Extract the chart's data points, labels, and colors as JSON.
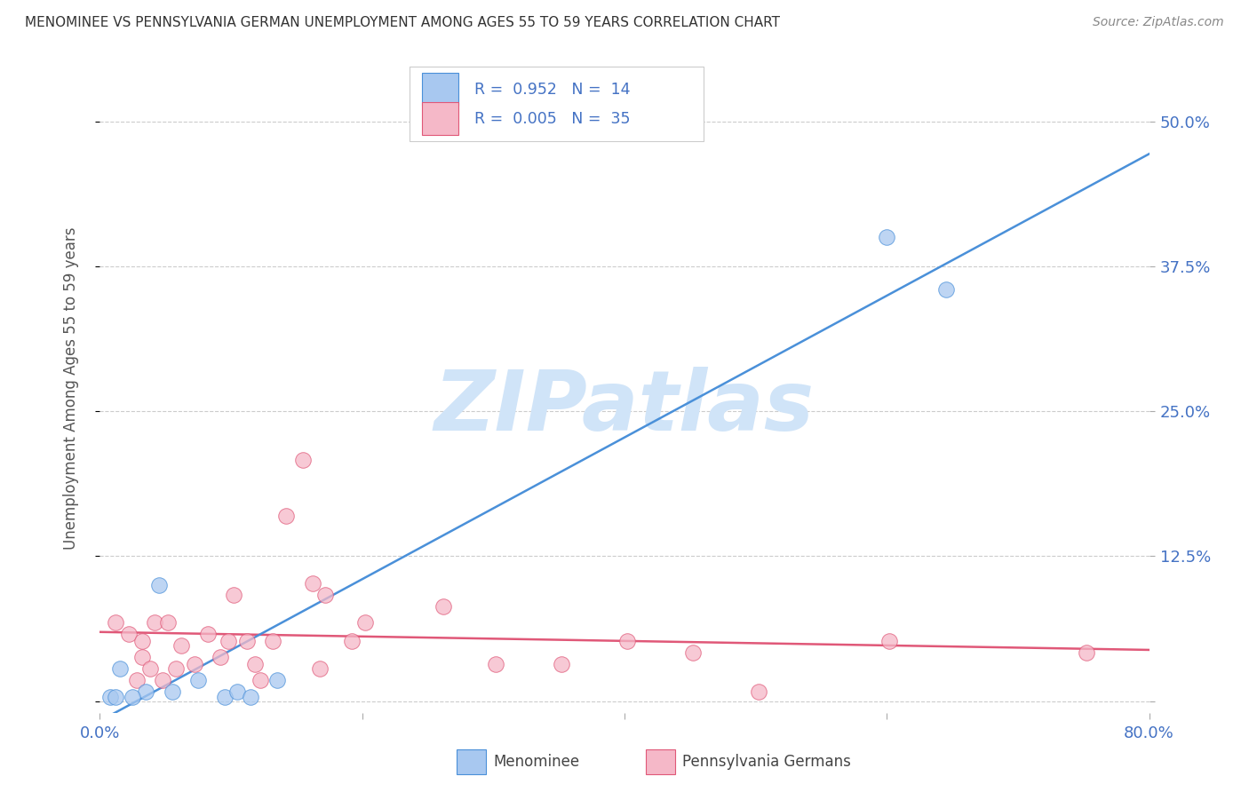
{
  "title": "MENOMINEE VS PENNSYLVANIA GERMAN UNEMPLOYMENT AMONG AGES 55 TO 59 YEARS CORRELATION CHART",
  "source": "Source: ZipAtlas.com",
  "ylabel": "Unemployment Among Ages 55 to 59 years",
  "xlim": [
    0.0,
    0.8
  ],
  "ylim": [
    -0.01,
    0.55
  ],
  "xticks": [
    0.0,
    0.2,
    0.4,
    0.6,
    0.8
  ],
  "xticklabels": [
    "0.0%",
    "",
    "",
    "",
    "80.0%"
  ],
  "ytick_positions": [
    0.0,
    0.125,
    0.25,
    0.375,
    0.5
  ],
  "ytick_labels": [
    "",
    "12.5%",
    "25.0%",
    "37.5%",
    "50.0%"
  ],
  "menominee_R": "0.952",
  "menominee_N": "14",
  "penn_german_R": "0.005",
  "penn_german_N": "35",
  "menominee_color": "#a8c8f0",
  "penn_german_color": "#f5b8c8",
  "menominee_line_color": "#4a90d9",
  "penn_german_line_color": "#e05878",
  "watermark": "ZIPatlas",
  "watermark_color": "#d0e4f8",
  "menominee_scatter_x": [
    0.015,
    0.035,
    0.008,
    0.025,
    0.045,
    0.055,
    0.075,
    0.095,
    0.105,
    0.115,
    0.135,
    0.6,
    0.645,
    0.012
  ],
  "menominee_scatter_y": [
    0.028,
    0.008,
    0.004,
    0.004,
    0.1,
    0.008,
    0.018,
    0.004,
    0.008,
    0.004,
    0.018,
    0.4,
    0.355,
    0.004
  ],
  "penn_german_scatter_x": [
    0.012,
    0.022,
    0.032,
    0.032,
    0.028,
    0.042,
    0.038,
    0.052,
    0.048,
    0.062,
    0.058,
    0.072,
    0.082,
    0.092,
    0.102,
    0.098,
    0.112,
    0.118,
    0.122,
    0.132,
    0.142,
    0.155,
    0.162,
    0.172,
    0.168,
    0.192,
    0.202,
    0.262,
    0.302,
    0.352,
    0.402,
    0.452,
    0.502,
    0.602,
    0.752
  ],
  "penn_german_scatter_y": [
    0.068,
    0.058,
    0.052,
    0.038,
    0.018,
    0.068,
    0.028,
    0.068,
    0.018,
    0.048,
    0.028,
    0.032,
    0.058,
    0.038,
    0.092,
    0.052,
    0.052,
    0.032,
    0.018,
    0.052,
    0.16,
    0.208,
    0.102,
    0.092,
    0.028,
    0.052,
    0.068,
    0.082,
    0.032,
    0.032,
    0.052,
    0.042,
    0.008,
    0.052,
    0.042
  ],
  "background_color": "#ffffff",
  "grid_color": "#cccccc",
  "title_color": "#333333",
  "axis_label_color": "#555555",
  "tick_color": "#4472c4",
  "legend_text_color": "#4472c4"
}
